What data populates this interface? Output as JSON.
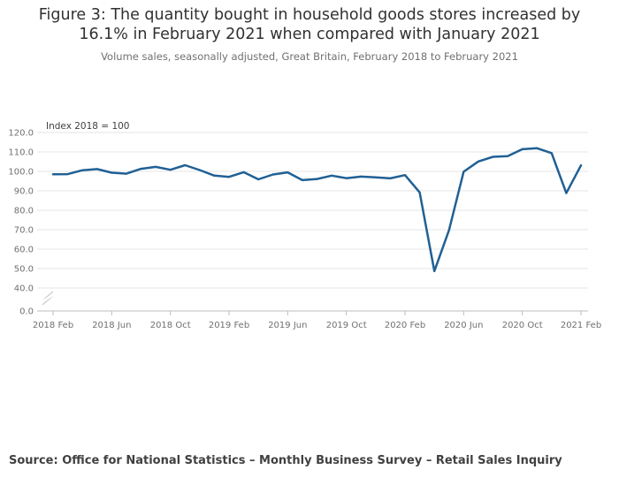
{
  "header": {
    "title_line1": "Figure 3: The quantity bought in household goods stores increased by",
    "title_line2": "16.1% in February 2021 when compared with January 2021",
    "subtitle": "Volume sales, seasonally adjusted, Great Britain, February 2018 to February 2021"
  },
  "footer": {
    "source": "Source: Office for National Statistics – Monthly Business Survey – Retail Sales Inquiry"
  },
  "colors": {
    "line": "#206095",
    "grid": "#e5e5e5",
    "axis": "#bebebe"
  },
  "chart_data": {
    "type": "line",
    "title": "Figure 3: The quantity bought in household goods stores increased by 16.1% in February 2021 when compared with January 2021",
    "subtitle": "Volume sales, seasonally adjusted, Great Britain, February 2018 to February 2021",
    "ylabel": "Index 2018 = 100",
    "xlabel": "",
    "ylim": [
      0,
      120
    ],
    "axis_break": [
      0,
      40
    ],
    "y_ticks": [
      "120.0",
      "110.0",
      "100.0",
      "90.0",
      "80.0",
      "70.0",
      "60.0",
      "50.0",
      "40.0",
      "0.0"
    ],
    "x_tick_labels": [
      "2018 Feb",
      "2018 Jun",
      "2018 Oct",
      "2019 Feb",
      "2019 Jun",
      "2019 Oct",
      "2020 Feb",
      "2020 Jun",
      "2020 Oct",
      "2021 Feb"
    ],
    "x_tick_indices": [
      0,
      4,
      8,
      12,
      16,
      20,
      24,
      28,
      32,
      36
    ],
    "series": [
      {
        "name": "Household goods stores",
        "x": [
          "2018 Feb",
          "2018 Mar",
          "2018 Apr",
          "2018 May",
          "2018 Jun",
          "2018 Jul",
          "2018 Aug",
          "2018 Sep",
          "2018 Oct",
          "2018 Nov",
          "2018 Dec",
          "2019 Jan",
          "2019 Feb",
          "2019 Mar",
          "2019 Apr",
          "2019 May",
          "2019 Jun",
          "2019 Jul",
          "2019 Aug",
          "2019 Sep",
          "2019 Oct",
          "2019 Nov",
          "2019 Dec",
          "2020 Jan",
          "2020 Feb",
          "2020 Mar",
          "2020 Apr",
          "2020 May",
          "2020 Jun",
          "2020 Jul",
          "2020 Aug",
          "2020 Sep",
          "2020 Oct",
          "2020 Nov",
          "2020 Dec",
          "2021 Jan",
          "2021 Feb"
        ],
        "values": [
          98.5,
          98.6,
          100.6,
          101.2,
          99.3,
          98.8,
          101.3,
          102.3,
          100.8,
          103.2,
          100.7,
          97.8,
          97.2,
          99.6,
          95.9,
          98.4,
          99.5,
          95.5,
          96.1,
          97.8,
          96.5,
          97.3,
          96.9,
          96.4,
          98.1,
          89.2,
          48.7,
          69.8,
          99.8,
          105.1,
          107.5,
          107.8,
          111.4,
          111.9,
          109.4,
          88.8,
          103.1
        ]
      }
    ]
  }
}
